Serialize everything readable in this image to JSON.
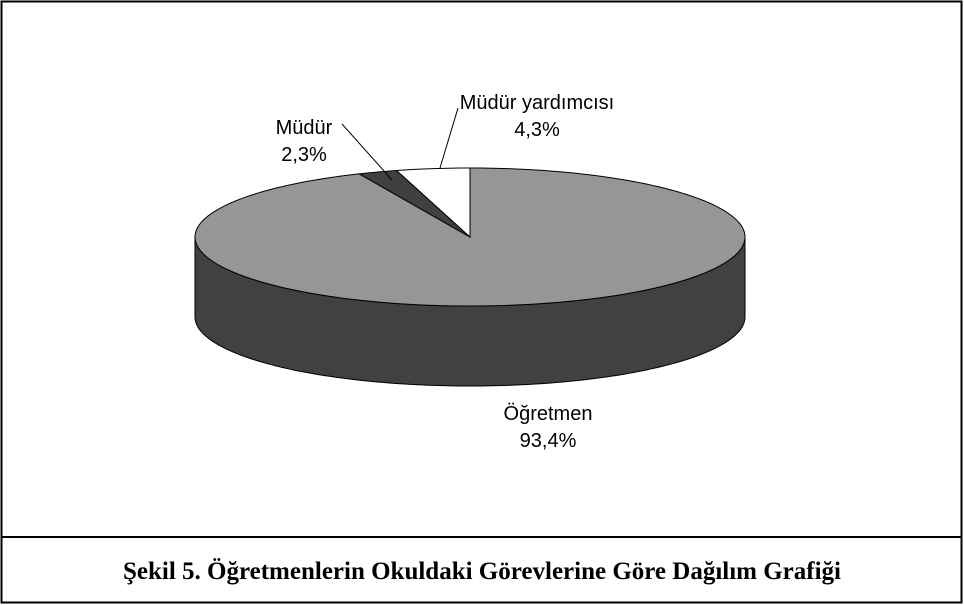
{
  "chart_data": {
    "type": "pie",
    "categories": [
      "Öğretmen",
      "Müdür",
      "Müdür yardımcısı"
    ],
    "values": [
      93.4,
      2.3,
      4.3
    ],
    "value_labels": [
      "93,4%",
      "2,3%",
      "4,3%"
    ],
    "colors": [
      "#969696",
      "#404040",
      "#ffffff"
    ]
  },
  "caption": "Şekil 5. Öğretmenlerin Okuldaki Görevlerine Göre Dağılım Grafiği"
}
